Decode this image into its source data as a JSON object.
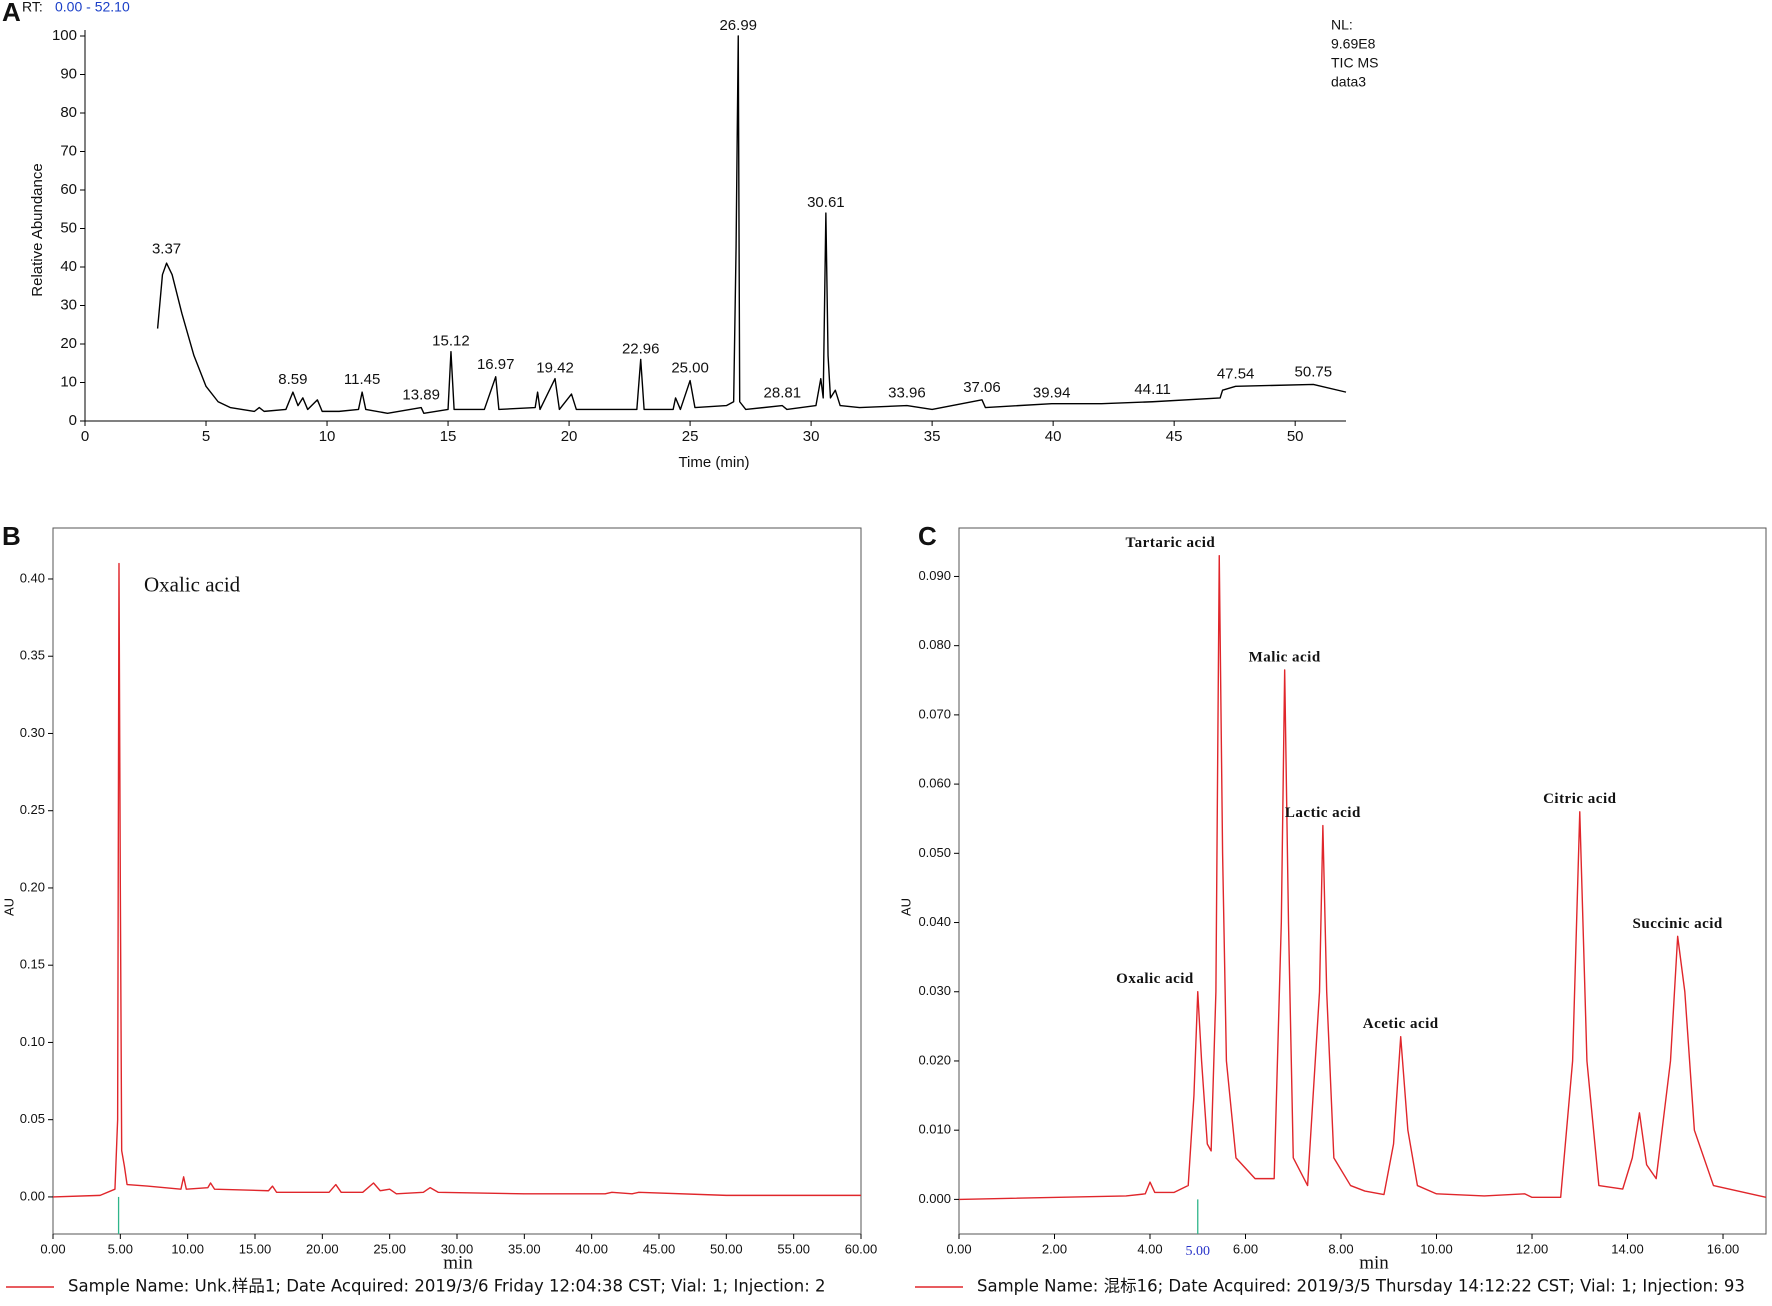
{
  "chart_data": [
    {
      "type": "line",
      "panel": "A",
      "range_label": "RT:",
      "range": "0.00 - 52.10",
      "info": [
        "NL:",
        "9.69E8",
        "TIC  MS",
        "data3"
      ],
      "xlabel": "Time (min)",
      "ylabel": "Relative Abundance",
      "xlim": [
        0,
        52.1
      ],
      "ylim": [
        0,
        100
      ],
      "xticks": [
        0,
        5,
        10,
        15,
        20,
        25,
        30,
        35,
        40,
        45,
        50
      ],
      "yticks": [
        0,
        10,
        20,
        30,
        40,
        50,
        60,
        70,
        80,
        90,
        100
      ],
      "x": [
        3.0,
        3.2,
        3.37,
        3.6,
        4.0,
        4.5,
        5.0,
        5.5,
        6,
        7,
        7.2,
        7.4,
        8.3,
        8.59,
        8.8,
        9.0,
        9.2,
        9.6,
        9.8,
        10.5,
        11.3,
        11.45,
        11.6,
        12.5,
        13.89,
        14,
        15.0,
        15.12,
        15.25,
        16.5,
        16.97,
        17.1,
        18.6,
        18.7,
        18.8,
        19.42,
        19.6,
        20.1,
        20.3,
        22.8,
        22.96,
        23.1,
        24.3,
        24.4,
        24.6,
        25.0,
        25.2,
        26.5,
        26.8,
        26.9,
        26.99,
        27.05,
        27.3,
        28.81,
        29,
        30.2,
        30.4,
        30.5,
        30.61,
        30.7,
        30.8,
        31,
        31.2,
        32,
        33.96,
        35,
        37.06,
        37.2,
        39.94,
        42,
        44.11,
        46.9,
        47.0,
        47.54,
        50.75,
        52.1
      ],
      "series": [
        {
          "color": "#000000",
          "values": [
            24,
            38,
            41,
            38,
            28,
            17,
            9,
            5,
            3.5,
            2.5,
            3.5,
            2.5,
            3,
            7.5,
            4,
            6,
            3,
            5.5,
            2.5,
            2.5,
            3,
            7.5,
            3,
            2,
            3.5,
            2,
            3,
            18,
            3,
            3,
            11.5,
            3,
            3.5,
            7.5,
            3,
            11,
            3,
            7,
            3,
            3,
            16,
            3,
            3,
            6,
            3,
            10.5,
            3.5,
            4,
            5,
            45,
            100,
            5,
            3,
            4,
            3,
            4,
            11,
            6,
            54,
            17,
            6,
            8,
            4,
            3.5,
            4,
            3,
            5.5,
            3.5,
            4.5,
            4.5,
            5,
            6,
            8,
            9,
            9.5,
            7.5
          ]
        }
      ],
      "annotations": [
        {
          "x": 3.37,
          "y": 42,
          "label": "3.37"
        },
        {
          "x": 8.59,
          "y": 8,
          "label": "8.59"
        },
        {
          "x": 11.45,
          "y": 8,
          "label": "11.45"
        },
        {
          "x": 13.89,
          "y": 4,
          "label": "13.89"
        },
        {
          "x": 15.12,
          "y": 18,
          "label": "15.12"
        },
        {
          "x": 16.97,
          "y": 12,
          "label": "16.97"
        },
        {
          "x": 19.42,
          "y": 11,
          "label": "19.42"
        },
        {
          "x": 22.96,
          "y": 16,
          "label": "22.96"
        },
        {
          "x": 25.0,
          "y": 11,
          "label": "25.00"
        },
        {
          "x": 26.99,
          "y": 100,
          "label": "26.99"
        },
        {
          "x": 28.81,
          "y": 4.5,
          "label": "28.81"
        },
        {
          "x": 30.61,
          "y": 54,
          "label": "30.61"
        },
        {
          "x": 33.96,
          "y": 4.5,
          "label": "33.96"
        },
        {
          "x": 37.06,
          "y": 6,
          "label": "37.06"
        },
        {
          "x": 39.94,
          "y": 4.5,
          "label": "39.94"
        },
        {
          "x": 44.11,
          "y": 5.5,
          "label": "44.11"
        },
        {
          "x": 47.54,
          "y": 9.5,
          "label": "47.54"
        },
        {
          "x": 50.75,
          "y": 10,
          "label": "50.75"
        }
      ]
    },
    {
      "type": "line",
      "panel": "B",
      "xlabel": "min",
      "ylabel": "AU",
      "xlim": [
        0,
        60
      ],
      "ylim": [
        -0.024,
        0.433
      ],
      "xticks": [
        {
          "value": 0,
          "label": "0.00"
        },
        {
          "value": 5,
          "label": "5.00"
        },
        {
          "value": 10,
          "label": "10.00"
        },
        {
          "value": 15,
          "label": "15.00"
        },
        {
          "value": 20,
          "label": "20.00"
        },
        {
          "value": 25,
          "label": "25.00"
        },
        {
          "value": 30,
          "label": "30.00"
        },
        {
          "value": 35,
          "label": "35.00"
        },
        {
          "value": 40,
          "label": "40.00"
        },
        {
          "value": 45,
          "label": "45.00"
        },
        {
          "value": 50,
          "label": "50.00"
        },
        {
          "value": 55,
          "label": "55.00"
        },
        {
          "value": 60,
          "label": "60.00"
        }
      ],
      "yticks": [
        {
          "value": 0,
          "label": "0.00"
        },
        {
          "value": 0.05,
          "label": "0.05"
        },
        {
          "value": 0.1,
          "label": "0.10"
        },
        {
          "value": 0.15,
          "label": "0.15"
        },
        {
          "value": 0.2,
          "label": "0.20"
        },
        {
          "value": 0.25,
          "label": "0.25"
        },
        {
          "value": 0.3,
          "label": "0.30"
        },
        {
          "value": 0.35,
          "label": "0.35"
        },
        {
          "value": 0.4,
          "label": "0.40"
        }
      ],
      "marker_x": 4.87,
      "x": [
        0,
        3.5,
        4.6,
        4.8,
        4.9,
        5.0,
        5.1,
        5.3,
        5.5,
        7,
        9.5,
        9.7,
        9.9,
        11.5,
        11.7,
        12,
        16,
        16.3,
        16.6,
        20.5,
        21,
        21.4,
        23,
        23.8,
        24.3,
        25,
        25.5,
        27.5,
        28,
        28.6,
        35,
        41,
        41.5,
        43,
        43.5,
        50,
        60
      ],
      "series": [
        {
          "name": "Sample Name: Unk.样品1;  Date Acquired: 2019/3/6 Friday    12:04:38 CST;  Vial: 1;  Injection: 2",
          "color": "#e0262b",
          "values": [
            0,
            0.001,
            0.005,
            0.05,
            0.41,
            0.2,
            0.03,
            0.02,
            0.008,
            0.007,
            0.005,
            0.013,
            0.005,
            0.006,
            0.009,
            0.005,
            0.004,
            0.007,
            0.003,
            0.003,
            0.008,
            0.003,
            0.003,
            0.009,
            0.004,
            0.005,
            0.002,
            0.003,
            0.006,
            0.003,
            0.002,
            0.002,
            0.003,
            0.002,
            0.003,
            0.001,
            0.001
          ]
        }
      ],
      "annotations": [
        {
          "x": 4.9,
          "y": 0.41,
          "label": "Oxalic acid",
          "align": "side"
        }
      ]
    },
    {
      "type": "line",
      "panel": "C",
      "xlabel": "min",
      "ylabel": "AU",
      "xlim": [
        0,
        16.9
      ],
      "ylim": [
        -0.005,
        0.097
      ],
      "xticks": [
        {
          "value": 0,
          "label": "0.00"
        },
        {
          "value": 2,
          "label": "2.00"
        },
        {
          "value": 4,
          "label": "4.00"
        },
        {
          "value": 6,
          "label": "6.00"
        },
        {
          "value": 8,
          "label": "8.00"
        },
        {
          "value": 10,
          "label": "10.00"
        },
        {
          "value": 12,
          "label": "12.00"
        },
        {
          "value": 14,
          "label": "14.00"
        },
        {
          "value": 16,
          "label": "16.00"
        }
      ],
      "yticks": [
        {
          "value": 0,
          "label": "0.000"
        },
        {
          "value": 0.01,
          "label": "0.010"
        },
        {
          "value": 0.02,
          "label": "0.020"
        },
        {
          "value": 0.03,
          "label": "0.030"
        },
        {
          "value": 0.04,
          "label": "0.040"
        },
        {
          "value": 0.05,
          "label": "0.050"
        },
        {
          "value": 0.06,
          "label": "0.060"
        },
        {
          "value": 0.07,
          "label": "0.070"
        },
        {
          "value": 0.08,
          "label": "0.080"
        },
        {
          "value": 0.09,
          "label": "0.090"
        }
      ],
      "marker_x": {
        "value": 5,
        "label": "5.00"
      },
      "x": [
        0,
        3.5,
        3.9,
        4.0,
        4.1,
        4.5,
        4.8,
        4.92,
        5.0,
        5.08,
        5.2,
        5.28,
        5.38,
        5.45,
        5.52,
        5.6,
        5.8,
        6.2,
        6.6,
        6.75,
        6.82,
        6.9,
        7.0,
        7.3,
        7.55,
        7.62,
        7.7,
        7.85,
        8.2,
        8.5,
        8.9,
        9.1,
        9.25,
        9.4,
        9.6,
        10,
        11,
        11.85,
        12.0,
        12.6,
        12.85,
        13.0,
        13.15,
        13.4,
        13.9,
        14.1,
        14.25,
        14.4,
        14.6,
        14.9,
        15.05,
        15.2,
        15.4,
        15.8,
        16.9
      ],
      "series": [
        {
          "name": "Sample Name: 混标16;  Date Acquired: 2019/3/5 Thursday  14:12:22 CST;  Vial: 1;  Injection: 93",
          "color": "#e0262b",
          "values": [
            0,
            0.0005,
            0.0008,
            0.0025,
            0.001,
            0.001,
            0.002,
            0.015,
            0.03,
            0.02,
            0.008,
            0.007,
            0.03,
            0.093,
            0.05,
            0.02,
            0.006,
            0.003,
            0.003,
            0.04,
            0.0765,
            0.04,
            0.006,
            0.002,
            0.03,
            0.054,
            0.03,
            0.006,
            0.002,
            0.0012,
            0.0007,
            0.008,
            0.0235,
            0.01,
            0.002,
            0.0008,
            0.0005,
            0.0008,
            0.0003,
            0.0003,
            0.02,
            0.056,
            0.02,
            0.002,
            0.0015,
            0.006,
            0.0125,
            0.005,
            0.003,
            0.02,
            0.038,
            0.03,
            0.01,
            0.002,
            0.0003
          ]
        }
      ],
      "annotations": [
        {
          "x": 5.0,
          "y": 0.03,
          "label": "Oxalic acid",
          "align": "end"
        },
        {
          "x": 5.45,
          "y": 0.093,
          "label": "Tartaric acid",
          "align": "end"
        },
        {
          "x": 6.82,
          "y": 0.0765,
          "label": "Malic acid",
          "align": "middle"
        },
        {
          "x": 7.62,
          "y": 0.054,
          "label": "Lactic acid",
          "align": "middle"
        },
        {
          "x": 9.25,
          "y": 0.0235,
          "label": "Acetic acid",
          "align": "middle"
        },
        {
          "x": 13.0,
          "y": 0.056,
          "label": "Citric acid",
          "align": "middle"
        },
        {
          "x": 15.05,
          "y": 0.038,
          "label": "Succinic acid",
          "align": "middle"
        }
      ]
    }
  ]
}
